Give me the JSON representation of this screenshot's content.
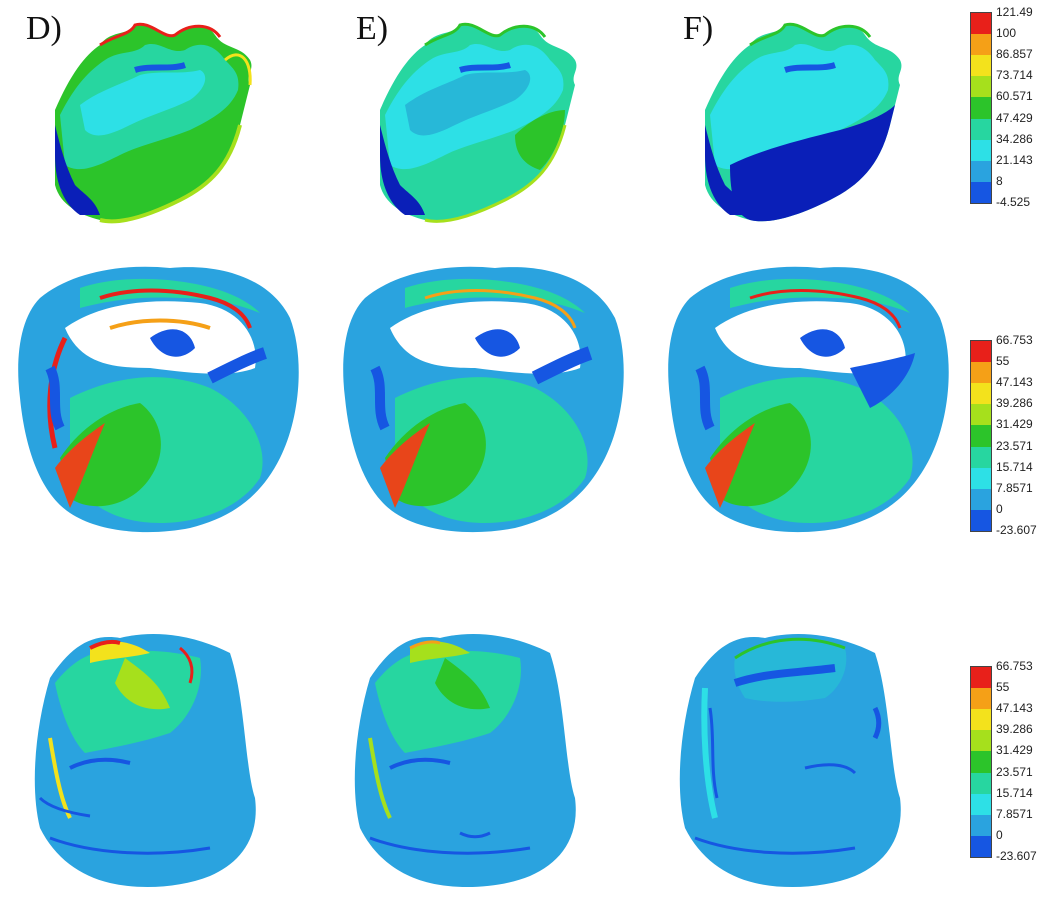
{
  "panel_labels": {
    "d": "D)",
    "e": "E)",
    "f": "F)"
  },
  "colors": {
    "bands": [
      "#e8201a",
      "#f5a017",
      "#f3e21c",
      "#a6e01c",
      "#2cc42a",
      "#27d6a0",
      "#2de0e6",
      "#2aa3df",
      "#1656e2"
    ],
    "cavity": "#0a1fb8",
    "enamel_base": "#27b8d8",
    "dentin_base": "#2a9fd8",
    "hot": "#e8451a"
  },
  "legends": [
    {
      "name": "top",
      "ticks": [
        "121.49",
        "100",
        "86.857",
        "73.714",
        "60.571",
        "47.429",
        "34.286",
        "21.143",
        "8",
        "-4.525"
      ]
    },
    {
      "name": "middle",
      "ticks": [
        "66.753",
        "55",
        "47.143",
        "39.286",
        "31.429",
        "23.571",
        "15.714",
        "7.8571",
        "0",
        "-23.607"
      ]
    },
    {
      "name": "bottom",
      "ticks": [
        "66.753",
        "55",
        "47.143",
        "39.286",
        "31.429",
        "23.571",
        "15.714",
        "7.8571",
        "0",
        "-23.607"
      ]
    }
  ]
}
